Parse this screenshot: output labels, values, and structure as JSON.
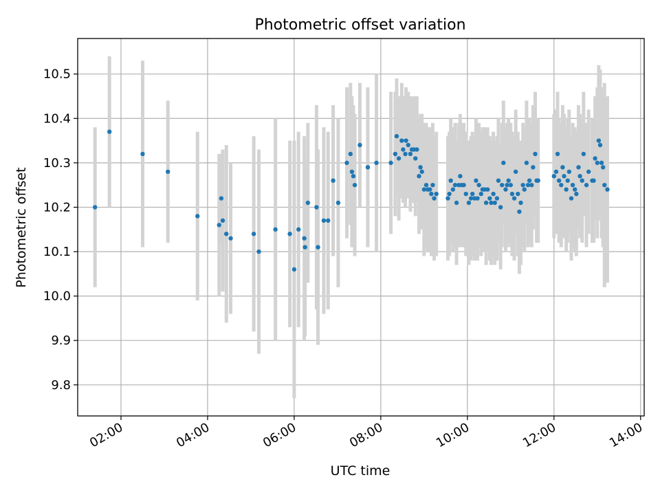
{
  "chart_data": {
    "type": "scatter",
    "title": "Photometric offset variation",
    "xlabel": "UTC time",
    "ylabel": "Photometric offset",
    "xlim": [
      "01:00",
      "14:05"
    ],
    "ylim": [
      9.73,
      10.58
    ],
    "x_ticks": [
      "02:00",
      "04:00",
      "06:00",
      "08:00",
      "10:00",
      "12:00",
      "14:00"
    ],
    "y_ticks": [
      "9.8",
      "9.9",
      "10.0",
      "10.1",
      "10.2",
      "10.3",
      "10.4",
      "10.5"
    ],
    "grid": true,
    "marker_color": "#1f77b4",
    "errorbar_color": "#d3d3d3",
    "points": [
      [
        "01:24",
        10.2,
        0.18
      ],
      [
        "01:44",
        10.37,
        0.17
      ],
      [
        "02:30",
        10.32,
        0.21
      ],
      [
        "03:05",
        10.28,
        0.16
      ],
      [
        "03:46",
        10.18,
        0.19
      ],
      [
        "04:16",
        10.16,
        0.16
      ],
      [
        "04:19",
        10.22,
        0.1
      ],
      [
        "04:21",
        10.17,
        0.16
      ],
      [
        "04:26",
        10.14,
        0.2
      ],
      [
        "04:32",
        10.13,
        0.17
      ],
      [
        "05:04",
        10.14,
        0.22
      ],
      [
        "05:11",
        10.1,
        0.23
      ],
      [
        "05:34",
        10.15,
        0.25
      ],
      [
        "05:54",
        10.14,
        0.21
      ],
      [
        "06:00",
        10.06,
        0.29
      ],
      [
        "06:06",
        10.15,
        0.22
      ],
      [
        "06:14",
        10.13,
        0.23
      ],
      [
        "06:15",
        10.11,
        0.2
      ],
      [
        "06:19",
        10.21,
        0.18
      ],
      [
        "06:31",
        10.2,
        0.23
      ],
      [
        "06:33",
        10.11,
        0.22
      ],
      [
        "06:41",
        10.17,
        0.21
      ],
      [
        "06:47",
        10.17,
        0.2
      ],
      [
        "06:54",
        10.26,
        0.17
      ],
      [
        "07:01",
        10.21,
        0.19
      ],
      [
        "07:13",
        10.3,
        0.17
      ],
      [
        "07:18",
        10.32,
        0.16
      ],
      [
        "07:20",
        10.28,
        0.17
      ],
      [
        "07:22",
        10.27,
        0.16
      ],
      [
        "07:24",
        10.25,
        0.16
      ],
      [
        "07:31",
        10.34,
        0.14
      ],
      [
        "07:42",
        10.29,
        0.18
      ],
      [
        "07:54",
        10.3,
        0.2
      ],
      [
        "08:14",
        10.3,
        0.16
      ],
      [
        "08:20",
        10.32,
        0.14
      ],
      [
        "08:22",
        10.36,
        0.13
      ],
      [
        "08:25",
        10.31,
        0.14
      ],
      [
        "08:29",
        10.35,
        0.13
      ],
      [
        "08:31",
        10.33,
        0.12
      ],
      [
        "08:34",
        10.32,
        0.12
      ],
      [
        "08:35",
        10.35,
        0.12
      ],
      [
        "08:38",
        10.34,
        0.12
      ],
      [
        "08:41",
        10.32,
        0.13
      ],
      [
        "08:43",
        10.33,
        0.12
      ],
      [
        "08:46",
        10.33,
        0.12
      ],
      [
        "08:48",
        10.31,
        0.13
      ],
      [
        "08:50",
        10.33,
        0.12
      ],
      [
        "08:53",
        10.27,
        0.13
      ],
      [
        "08:55",
        10.29,
        0.12
      ],
      [
        "08:57",
        10.28,
        0.13
      ],
      [
        "09:00",
        10.24,
        0.15
      ],
      [
        "09:03",
        10.25,
        0.14
      ],
      [
        "09:05",
        10.24,
        0.14
      ],
      [
        "09:08",
        10.24,
        0.14
      ],
      [
        "09:10",
        10.23,
        0.14
      ],
      [
        "09:12",
        10.25,
        0.14
      ],
      [
        "09:14",
        10.22,
        0.14
      ],
      [
        "09:17",
        10.23,
        0.14
      ],
      [
        "09:33",
        10.22,
        0.14
      ],
      [
        "09:35",
        10.23,
        0.14
      ],
      [
        "09:37",
        10.26,
        0.14
      ],
      [
        "09:40",
        10.24,
        0.14
      ],
      [
        "09:43",
        10.25,
        0.14
      ],
      [
        "09:45",
        10.21,
        0.14
      ],
      [
        "09:48",
        10.25,
        0.14
      ],
      [
        "09:50",
        10.27,
        0.14
      ],
      [
        "09:52",
        10.25,
        0.14
      ],
      [
        "09:55",
        10.25,
        0.14
      ],
      [
        "09:58",
        10.23,
        0.14
      ],
      [
        "10:02",
        10.21,
        0.14
      ],
      [
        "10:05",
        10.22,
        0.14
      ],
      [
        "10:07",
        10.23,
        0.14
      ],
      [
        "10:10",
        10.22,
        0.14
      ],
      [
        "10:12",
        10.26,
        0.14
      ],
      [
        "10:14",
        10.22,
        0.14
      ],
      [
        "10:16",
        10.25,
        0.14
      ],
      [
        "10:19",
        10.23,
        0.14
      ],
      [
        "10:21",
        10.24,
        0.14
      ],
      [
        "10:24",
        10.24,
        0.14
      ],
      [
        "10:26",
        10.21,
        0.14
      ],
      [
        "10:28",
        10.24,
        0.14
      ],
      [
        "10:31",
        10.22,
        0.14
      ],
      [
        "10:33",
        10.21,
        0.14
      ],
      [
        "10:36",
        10.23,
        0.14
      ],
      [
        "10:38",
        10.21,
        0.14
      ],
      [
        "10:41",
        10.22,
        0.14
      ],
      [
        "10:43",
        10.26,
        0.14
      ],
      [
        "10:46",
        10.2,
        0.14
      ],
      [
        "10:48",
        10.25,
        0.14
      ],
      [
        "10:50",
        10.3,
        0.14
      ],
      [
        "10:53",
        10.24,
        0.14
      ],
      [
        "10:55",
        10.25,
        0.14
      ],
      [
        "10:57",
        10.26,
        0.14
      ],
      [
        "11:00",
        10.25,
        0.14
      ],
      [
        "11:02",
        10.23,
        0.14
      ],
      [
        "11:05",
        10.22,
        0.14
      ],
      [
        "11:07",
        10.28,
        0.14
      ],
      [
        "11:10",
        10.23,
        0.14
      ],
      [
        "11:12",
        10.19,
        0.14
      ],
      [
        "11:14",
        10.21,
        0.14
      ],
      [
        "11:17",
        10.25,
        0.14
      ],
      [
        "11:19",
        10.24,
        0.14
      ],
      [
        "11:22",
        10.3,
        0.14
      ],
      [
        "11:24",
        10.25,
        0.14
      ],
      [
        "11:26",
        10.26,
        0.14
      ],
      [
        "11:29",
        10.25,
        0.14
      ],
      [
        "11:31",
        10.29,
        0.14
      ],
      [
        "11:34",
        10.32,
        0.14
      ],
      [
        "11:36",
        10.26,
        0.14
      ],
      [
        "11:38",
        10.26,
        0.14
      ],
      [
        "12:00",
        10.27,
        0.14
      ],
      [
        "12:03",
        10.28,
        0.14
      ],
      [
        "12:05",
        10.32,
        0.14
      ],
      [
        "12:07",
        10.26,
        0.14
      ],
      [
        "12:10",
        10.25,
        0.14
      ],
      [
        "12:12",
        10.29,
        0.14
      ],
      [
        "12:14",
        10.27,
        0.14
      ],
      [
        "12:17",
        10.24,
        0.14
      ],
      [
        "12:19",
        10.26,
        0.14
      ],
      [
        "12:21",
        10.28,
        0.14
      ],
      [
        "12:24",
        10.22,
        0.14
      ],
      [
        "12:26",
        10.25,
        0.14
      ],
      [
        "12:29",
        10.24,
        0.14
      ],
      [
        "12:31",
        10.23,
        0.14
      ],
      [
        "12:34",
        10.29,
        0.14
      ],
      [
        "12:36",
        10.27,
        0.14
      ],
      [
        "12:39",
        10.26,
        0.14
      ],
      [
        "12:41",
        10.32,
        0.14
      ],
      [
        "12:45",
        10.25,
        0.14
      ],
      [
        "12:48",
        10.28,
        0.14
      ],
      [
        "12:53",
        10.26,
        0.14
      ],
      [
        "12:55",
        10.26,
        0.14
      ],
      [
        "12:57",
        10.31,
        0.14
      ],
      [
        "13:00",
        10.3,
        0.17
      ],
      [
        "13:02",
        10.35,
        0.17
      ],
      [
        "13:04",
        10.34,
        0.17
      ],
      [
        "13:06",
        10.3,
        0.17
      ],
      [
        "13:08",
        10.29,
        0.18
      ],
      [
        "13:10",
        10.25,
        0.23
      ],
      [
        "13:14",
        10.24,
        0.21
      ]
    ]
  }
}
